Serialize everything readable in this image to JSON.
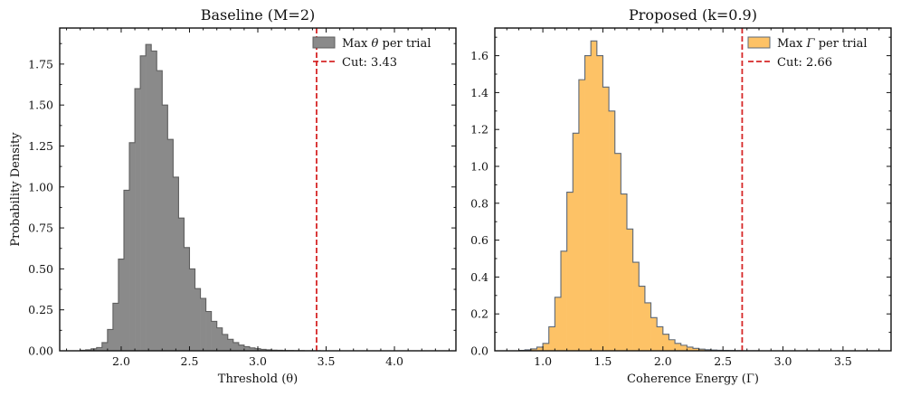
{
  "chart_data": [
    {
      "type": "histogram",
      "title": "Baseline (M=2)",
      "xlabel": "Threshold (θ)",
      "ylabel": "Probability Density",
      "xlim": [
        1.55,
        4.45
      ],
      "ylim": [
        0,
        1.97
      ],
      "xticks": [
        2.0,
        2.5,
        3.0,
        3.5,
        4.0
      ],
      "xtick_labels": [
        "2.0",
        "2.5",
        "3.0",
        "3.5",
        "4.0"
      ],
      "yticks": [
        0.0,
        0.25,
        0.5,
        0.75,
        1.0,
        1.25,
        1.5,
        1.75
      ],
      "ytick_labels": [
        "0.00",
        "0.25",
        "0.50",
        "0.75",
        "1.00",
        "1.25",
        "1.50",
        "1.75"
      ],
      "fill_color": "#8a8a8a",
      "edge_color": "#5f5f5f",
      "bins": {
        "edges": [
          1.7,
          1.74,
          1.78,
          1.82,
          1.86,
          1.9,
          1.94,
          1.98,
          2.02,
          2.06,
          2.1,
          2.14,
          2.18,
          2.22,
          2.26,
          2.3,
          2.34,
          2.38,
          2.42,
          2.46,
          2.5,
          2.54,
          2.58,
          2.62,
          2.66,
          2.7,
          2.74,
          2.78,
          2.82,
          2.86,
          2.9,
          2.94,
          2.98,
          3.02,
          3.06,
          3.1,
          3.14,
          3.18,
          3.22,
          3.26,
          3.3,
          3.34,
          3.38,
          3.42,
          3.46
        ],
        "densities": [
          0.003,
          0.006,
          0.012,
          0.02,
          0.05,
          0.13,
          0.29,
          0.56,
          0.98,
          1.27,
          1.6,
          1.8,
          1.87,
          1.83,
          1.71,
          1.5,
          1.29,
          1.06,
          0.81,
          0.63,
          0.5,
          0.38,
          0.32,
          0.24,
          0.18,
          0.14,
          0.1,
          0.07,
          0.05,
          0.035,
          0.025,
          0.018,
          0.013,
          0.009,
          0.006,
          0.004,
          0.003,
          0.002,
          0.0015,
          0.001,
          0.0008,
          0.0005,
          0.0003,
          0.0002
        ]
      },
      "cut": 3.43,
      "cut_color": "#d62728",
      "legend": {
        "position": "top-right",
        "entries": [
          {
            "label_prefix": "Max ",
            "label_symbol": "θ",
            "label_suffix": " per trial"
          },
          {
            "label": "Cut: 3.43"
          }
        ]
      }
    },
    {
      "type": "histogram",
      "title": "Proposed (k=0.9)",
      "xlabel": "Coherence Energy (Γ)",
      "ylabel": "",
      "xlim": [
        0.6,
        3.9
      ],
      "ylim": [
        0,
        1.75
      ],
      "xticks": [
        1.0,
        1.5,
        2.0,
        2.5,
        3.0,
        3.5
      ],
      "xtick_labels": [
        "1.0",
        "1.5",
        "2.0",
        "2.5",
        "3.0",
        "3.5"
      ],
      "yticks": [
        0.0,
        0.2,
        0.4,
        0.6,
        0.8,
        1.0,
        1.2,
        1.4,
        1.6
      ],
      "ytick_labels": [
        "0.0",
        "0.2",
        "0.4",
        "0.6",
        "0.8",
        "1.0",
        "1.2",
        "1.4",
        "1.6"
      ],
      "fill_color": "#fdc266",
      "edge_color": "#5d6876",
      "bins": {
        "edges": [
          0.8,
          0.85,
          0.9,
          0.95,
          1.0,
          1.05,
          1.1,
          1.15,
          1.2,
          1.25,
          1.3,
          1.35,
          1.4,
          1.45,
          1.5,
          1.55,
          1.6,
          1.65,
          1.7,
          1.75,
          1.8,
          1.85,
          1.9,
          1.95,
          2.0,
          2.05,
          2.1,
          2.15,
          2.2,
          2.25,
          2.3,
          2.35,
          2.4,
          2.45,
          2.5,
          2.55,
          2.6,
          2.65,
          2.7,
          2.75,
          2.8
        ],
        "densities": [
          0.002,
          0.005,
          0.01,
          0.02,
          0.04,
          0.13,
          0.29,
          0.54,
          0.86,
          1.18,
          1.47,
          1.6,
          1.68,
          1.6,
          1.43,
          1.3,
          1.07,
          0.85,
          0.66,
          0.48,
          0.35,
          0.26,
          0.18,
          0.13,
          0.09,
          0.06,
          0.04,
          0.03,
          0.02,
          0.013,
          0.009,
          0.006,
          0.004,
          0.003,
          0.002,
          0.0015,
          0.001,
          0.0006,
          0.0003,
          0.0002
        ]
      },
      "cut": 2.66,
      "cut_color": "#d62728",
      "legend": {
        "position": "top-right",
        "entries": [
          {
            "label_prefix": "Max ",
            "label_symbol": "Γ",
            "label_suffix": " per trial"
          },
          {
            "label": "Cut: 2.66"
          }
        ]
      }
    }
  ]
}
